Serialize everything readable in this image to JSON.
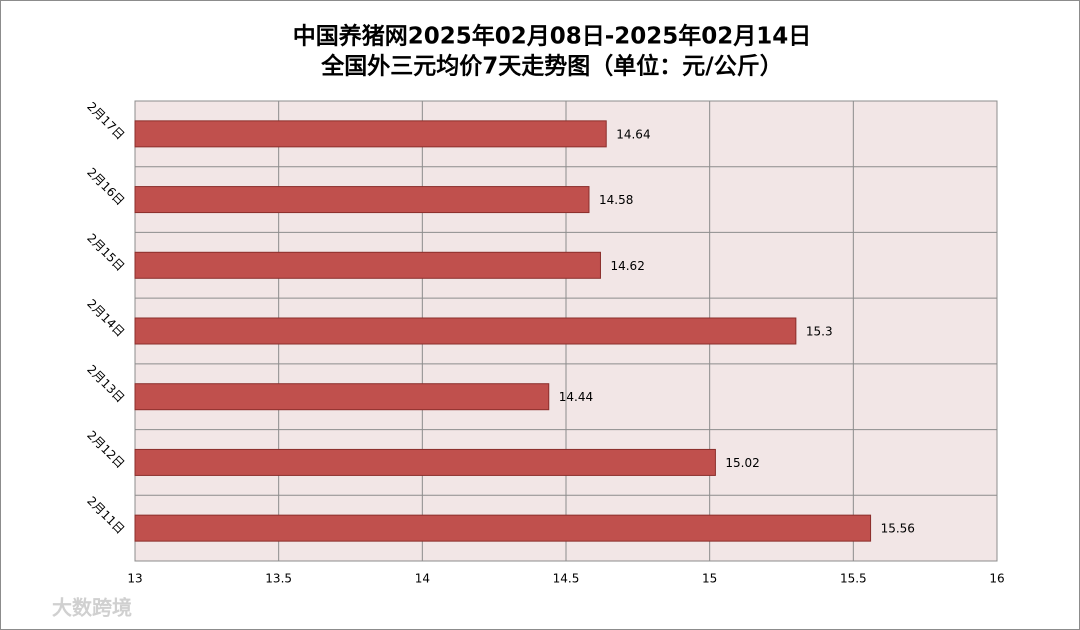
{
  "chart_data": {
    "type": "hbar",
    "title": "中国养猪网2025年02月08日-2025年02月14日",
    "subtitle": "全国外三元均价7天走势图（单位：元/公斤）",
    "categories": [
      "2月11日",
      "2月12日",
      "2月13日",
      "2月14日",
      "2月15日",
      "2月16日",
      "2月17日"
    ],
    "values": [
      15.56,
      15.02,
      14.44,
      15.3,
      14.62,
      14.58,
      14.64
    ],
    "color": "#c0504d",
    "xlim": [
      13,
      16
    ],
    "xticks": [
      13,
      13.5,
      14,
      14.5,
      15,
      15.5,
      16
    ],
    "grid": true,
    "watermark": "大数跨境"
  }
}
